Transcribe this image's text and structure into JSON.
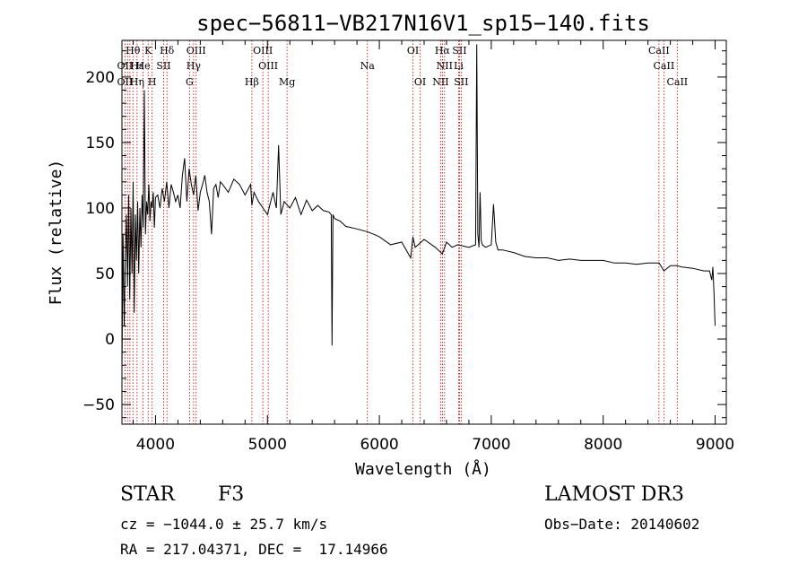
{
  "chart_data": {
    "type": "line",
    "title": "spec−56811−VB217N16V1_sp15−140.fits",
    "xlabel": "Wavelength (Å)",
    "ylabel": "Flux (relative)",
    "xlim": [
      3700,
      9100
    ],
    "ylim": [
      -65,
      228
    ],
    "xticks": [
      "4000",
      "5000",
      "6000",
      "7000",
      "8000",
      "9000"
    ],
    "xtick_values": [
      4000,
      5000,
      6000,
      7000,
      8000,
      9000
    ],
    "yticks": [
      "−50",
      "0",
      "50",
      "100",
      "150",
      "200"
    ],
    "ytick_values": [
      -50,
      0,
      50,
      100,
      150,
      200
    ],
    "grid": false,
    "series": [
      {
        "name": "spectrum",
        "x": [
          3700,
          3710,
          3720,
          3730,
          3740,
          3750,
          3760,
          3770,
          3780,
          3790,
          3800,
          3810,
          3820,
          3830,
          3840,
          3850,
          3860,
          3870,
          3880,
          3890,
          3900,
          3910,
          3920,
          3930,
          3940,
          3950,
          3960,
          3970,
          3980,
          3990,
          4000,
          4020,
          4040,
          4060,
          4080,
          4100,
          4120,
          4140,
          4160,
          4180,
          4200,
          4220,
          4240,
          4260,
          4280,
          4300,
          4320,
          4340,
          4360,
          4380,
          4400,
          4420,
          4440,
          4460,
          4480,
          4500,
          4520,
          4540,
          4560,
          4580,
          4600,
          4650,
          4700,
          4750,
          4800,
          4850,
          4861,
          4880,
          4920,
          4960,
          5000,
          5050,
          5080,
          5100,
          5120,
          5150,
          5200,
          5250,
          5300,
          5350,
          5400,
          5450,
          5500,
          5550,
          5570,
          5577,
          5585,
          5600,
          5650,
          5700,
          5800,
          5890,
          5950,
          6000,
          6100,
          6200,
          6280,
          6300,
          6320,
          6400,
          6500,
          6563,
          6600,
          6650,
          6700,
          6800,
          6860,
          6870,
          6880,
          6890,
          6900,
          6910,
          6920,
          6950,
          7000,
          7020,
          7040,
          7060,
          7100,
          7200,
          7300,
          7400,
          7500,
          7600,
          7700,
          7800,
          7900,
          8000,
          8100,
          8200,
          8300,
          8400,
          8500,
          8542,
          8600,
          8662,
          8700,
          8800,
          8900,
          8950,
          8970,
          8980,
          8990,
          9000
        ],
        "values": [
          -25,
          80,
          10,
          60,
          95,
          40,
          110,
          30,
          100,
          50,
          120,
          20,
          95,
          60,
          105,
          50,
          100,
          70,
          110,
          85,
          190,
          80,
          105,
          95,
          118,
          90,
          105,
          100,
          112,
          85,
          108,
          110,
          100,
          115,
          105,
          120,
          100,
          118,
          112,
          105,
          110,
          100,
          125,
          138,
          105,
          130,
          118,
          110,
          125,
          98,
          112,
          118,
          125,
          112,
          105,
          80,
          115,
          118,
          108,
          120,
          118,
          112,
          122,
          118,
          110,
          118,
          102,
          112,
          105,
          100,
          95,
          112,
          100,
          148,
          95,
          105,
          100,
          108,
          95,
          106,
          98,
          102,
          98,
          97,
          95,
          -5,
          95,
          92,
          90,
          86,
          84,
          82,
          80,
          78,
          72,
          74,
          62,
          78,
          70,
          76,
          70,
          65,
          74,
          70,
          72,
          70,
          72,
          225,
          80,
          70,
          112,
          75,
          72,
          70,
          72,
          103,
          74,
          68,
          68,
          66,
          63,
          62,
          62,
          60,
          61,
          60,
          60,
          60,
          58,
          58,
          57,
          58,
          58,
          52,
          56,
          56,
          55,
          54,
          52,
          52,
          45,
          55,
          35,
          10
        ]
      }
    ],
    "line_labels": [
      {
        "name": "Hθ",
        "wl": 3798,
        "row": 1
      },
      {
        "name": "K",
        "wl": 3934,
        "row": 1
      },
      {
        "name": "Hδ",
        "wl": 4102,
        "row": 1
      },
      {
        "name": "OIII",
        "wl": 4363,
        "row": 1
      },
      {
        "name": "OIII",
        "wl": 4959,
        "row": 1
      },
      {
        "name": "OI",
        "wl": 6300,
        "row": 1
      },
      {
        "name": "Hα",
        "wl": 6563,
        "row": 1
      },
      {
        "name": "SII",
        "wl": 6716,
        "row": 1
      },
      {
        "name": "CaII",
        "wl": 8498,
        "row": 1
      },
      {
        "name": "OII",
        "wl": 3727,
        "row": 2
      },
      {
        "name": "Hε",
        "wl": 3835,
        "row": 2
      },
      {
        "name": "He",
        "wl": 3889,
        "row": 2
      },
      {
        "name": "SII",
        "wl": 4072,
        "row": 2
      },
      {
        "name": "Hγ",
        "wl": 4340,
        "row": 2
      },
      {
        "name": "OIII",
        "wl": 5007,
        "row": 2
      },
      {
        "name": "Na",
        "wl": 5893,
        "row": 2
      },
      {
        "name": "NII",
        "wl": 6583,
        "row": 2
      },
      {
        "name": "Li",
        "wl": 6708,
        "row": 2
      },
      {
        "name": "CaII",
        "wl": 8542,
        "row": 2
      },
      {
        "name": "OII",
        "wl": 3727,
        "row": 3
      },
      {
        "name": "Hη",
        "wl": 3835,
        "row": 3
      },
      {
        "name": "H",
        "wl": 3970,
        "row": 3
      },
      {
        "name": "G",
        "wl": 4304,
        "row": 3
      },
      {
        "name": "Hβ",
        "wl": 4861,
        "row": 3
      },
      {
        "name": "Mg",
        "wl": 5175,
        "row": 3
      },
      {
        "name": "OI",
        "wl": 6364,
        "row": 3
      },
      {
        "name": "NII",
        "wl": 6548,
        "row": 3
      },
      {
        "name": "SII",
        "wl": 6731,
        "row": 3
      },
      {
        "name": "CaII",
        "wl": 8662,
        "row": 3
      }
    ],
    "marker_lines": [
      3727,
      3750,
      3771,
      3798,
      3835,
      3889,
      3934,
      3970,
      4072,
      4102,
      4304,
      4340,
      4363,
      4861,
      4959,
      5007,
      5175,
      5893,
      6300,
      6364,
      6548,
      6563,
      6583,
      6708,
      6716,
      6731,
      8498,
      8542,
      8662
    ],
    "colors": {
      "spectrum": "#000000",
      "marker": "#cc0000",
      "axis": "#000000",
      "background": "#ffffff"
    }
  },
  "info": {
    "class_label": "STAR",
    "subclass": "F3",
    "survey": "LAMOST DR3",
    "cz": "cz = −1044.0 ± 25.7 km/s",
    "obs_date": "Obs−Date: 20140602",
    "radec": "RA = 217.04371, DEC =  17.14966"
  }
}
